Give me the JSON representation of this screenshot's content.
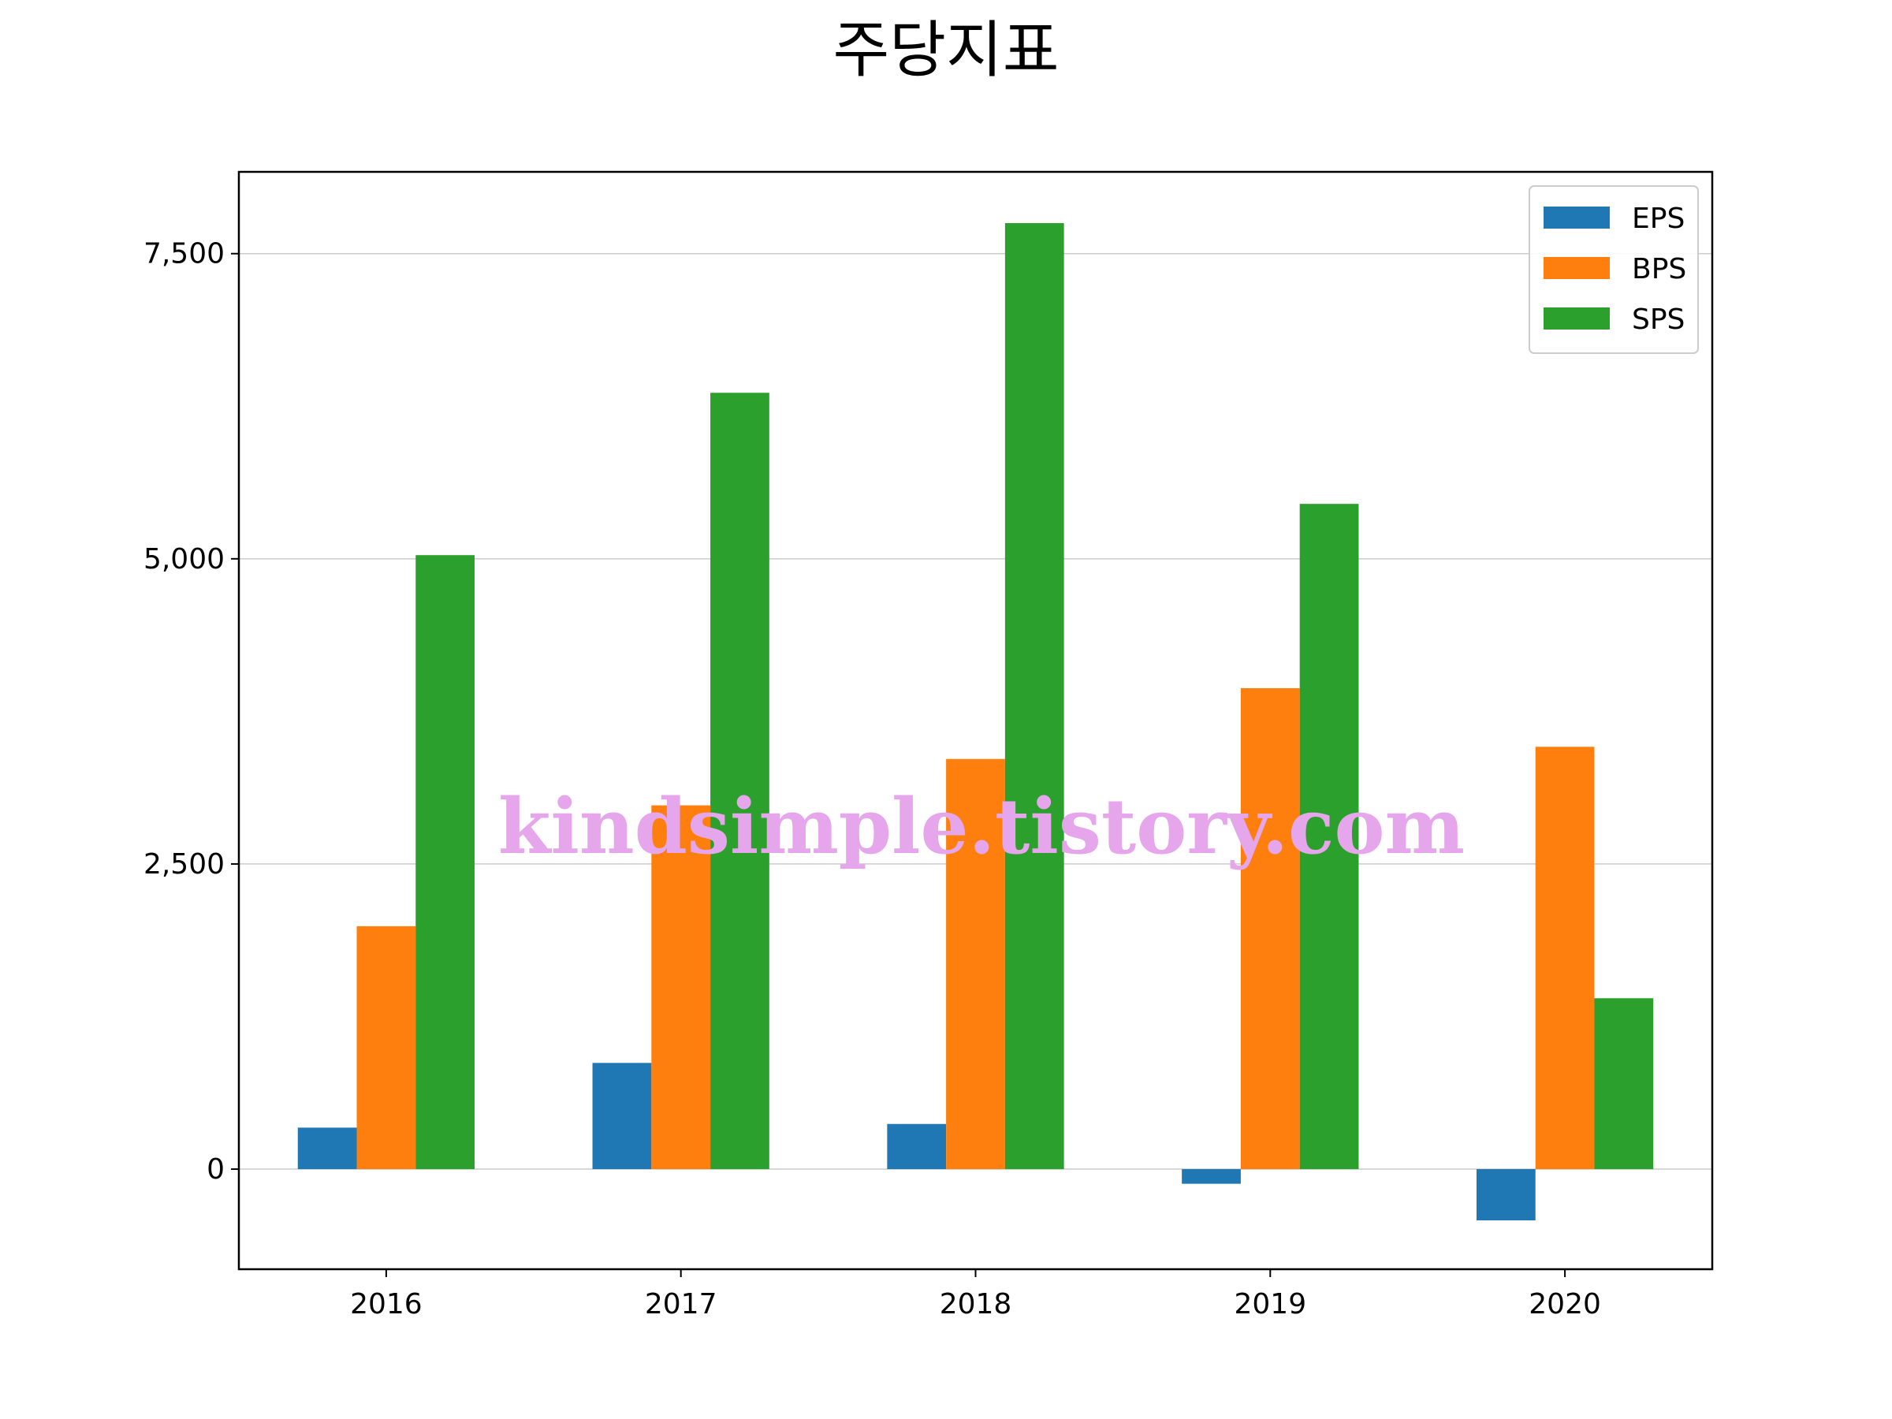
{
  "chart_data": {
    "type": "bar",
    "title": "주당지표",
    "xlabel": "",
    "ylabel": "",
    "categories": [
      "2016",
      "2017",
      "2018",
      "2019",
      "2020"
    ],
    "series": [
      {
        "name": "EPS",
        "color": "#1f77b4",
        "values": [
          340,
          870,
          370,
          -120,
          -420
        ]
      },
      {
        "name": "BPS",
        "color": "#ff7f0e",
        "values": [
          1990,
          2980,
          3360,
          3940,
          3460
        ]
      },
      {
        "name": "SPS",
        "color": "#2ca02c",
        "values": [
          5030,
          6360,
          7750,
          5450,
          1400
        ]
      }
    ],
    "yticks": [
      0,
      2500,
      5000,
      7500
    ],
    "ytick_labels": [
      "0",
      "2,500",
      "5,000",
      "7,500"
    ],
    "ylim": [
      -820,
      8170
    ],
    "grid": "y",
    "legend_position": "top-right",
    "watermark": "kindsimple.tistory.com"
  }
}
